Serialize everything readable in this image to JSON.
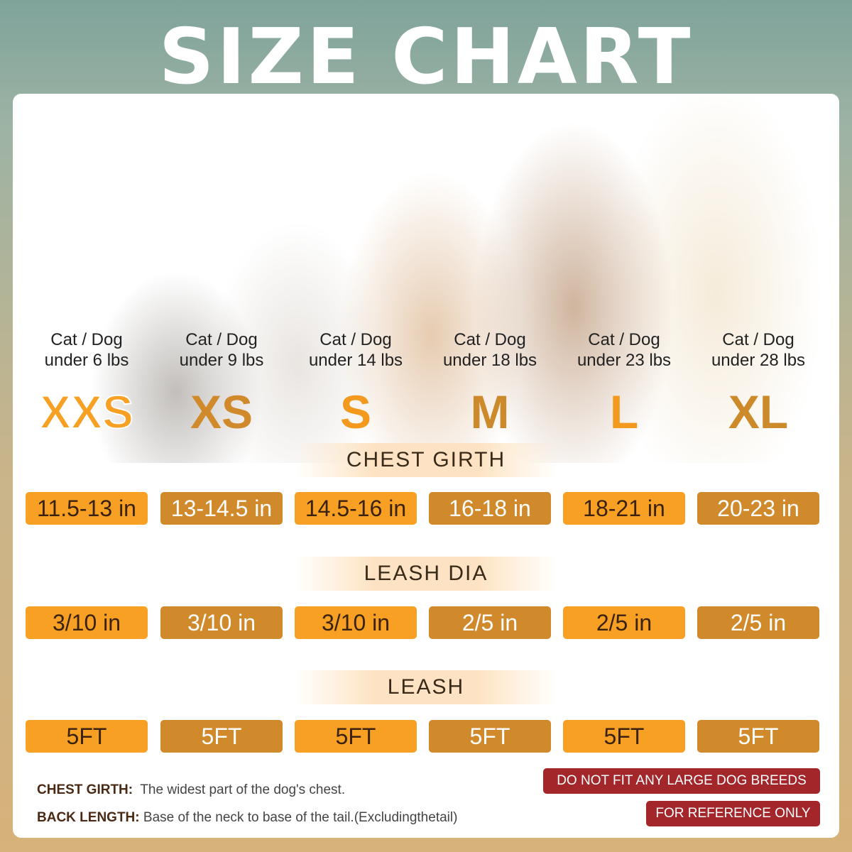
{
  "title": "SIZE CHART",
  "sizes": [
    {
      "size": "XXS",
      "line1": "Cat / Dog",
      "line2": "under 6 lbs",
      "chest": "11.5-13 in",
      "leash_dia": "3/10 in",
      "leash": "5FT",
      "color": "#f7a023"
    },
    {
      "size": "XS",
      "line1": "Cat / Dog",
      "line2": "under 9 lbs",
      "chest": "13-14.5 in",
      "leash_dia": "3/10 in",
      "leash": "5FT",
      "color": "#d08a2c"
    },
    {
      "size": "S",
      "line1": "Cat / Dog",
      "line2": "under 14 lbs",
      "chest": "14.5-16 in",
      "leash_dia": "3/10 in",
      "leash": "5FT",
      "color": "#f39a1e"
    },
    {
      "size": "M",
      "line1": "Cat / Dog",
      "line2": "under 18 lbs",
      "chest": "16-18 in",
      "leash_dia": "2/5 in",
      "leash": "5FT",
      "color": "#cc8a2a"
    },
    {
      "size": "L",
      "line1": "Cat / Dog",
      "line2": "under 23 lbs",
      "chest": "18-21 in",
      "leash_dia": "2/5 in",
      "leash": "5FT",
      "color": "#f39a1e"
    },
    {
      "size": "XL",
      "line1": "Cat / Dog",
      "line2": "under 28 lbs",
      "chest": "20-23 in",
      "leash_dia": "2/5 in",
      "leash": "5FT",
      "color": "#cc8a2a"
    }
  ],
  "headers": {
    "chest": "CHEST GIRTH",
    "leash_dia": "LEASH DIA",
    "leash": "LEASH"
  },
  "notes": {
    "chest_label": "CHEST GIRTH:",
    "chest_text": "The widest part of the dog's chest.",
    "back_label": "BACK LENGTH:",
    "back_text": "Base of the neck to base of the tail.(Excludingthetail)"
  },
  "warnings": {
    "large": "DO NOT FIT ANY LARGE DOG BREEDS",
    "reference": "FOR REFERENCE ONLY"
  }
}
